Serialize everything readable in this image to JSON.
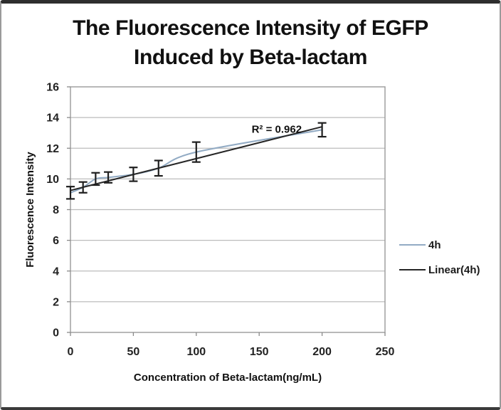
{
  "figure": {
    "title_lines": [
      "The Fluorescence Intensity of EGFP",
      "Induced by Beta-lactam"
    ]
  },
  "chart_data": {
    "type": "line",
    "title": "The Fluorescence Intensity of EGFP Induced by Beta-lactam",
    "xlabel": "Concentration of Beta-lactam(ng/mL)",
    "ylabel": "Fluorescence Intensity",
    "xlim": [
      0,
      250
    ],
    "ylim": [
      0,
      16
    ],
    "x_ticks": [
      0,
      50,
      100,
      150,
      200,
      250
    ],
    "y_ticks": [
      0,
      2,
      4,
      6,
      8,
      10,
      12,
      14,
      16
    ],
    "grid": "horizontal",
    "legend_position": "right-middle",
    "annotation": {
      "text": "R² = 0.962",
      "x": 144,
      "y": 13.0
    },
    "series": [
      {
        "name": "4h",
        "color": "#92abc4",
        "style": "smooth",
        "x": [
          0,
          10,
          20,
          30,
          50,
          70,
          100,
          200
        ],
        "y": [
          9.1,
          9.45,
          10.0,
          10.1,
          10.3,
          10.7,
          11.75,
          13.2
        ],
        "error": [
          0.4,
          0.35,
          0.4,
          0.35,
          0.45,
          0.5,
          0.65,
          0.45
        ]
      },
      {
        "name": "Linear(4h)",
        "color": "#262626",
        "style": "straight",
        "x": [
          0,
          200
        ],
        "y": [
          9.25,
          13.4
        ]
      }
    ],
    "error_bar_color": "#1f1f1f"
  }
}
